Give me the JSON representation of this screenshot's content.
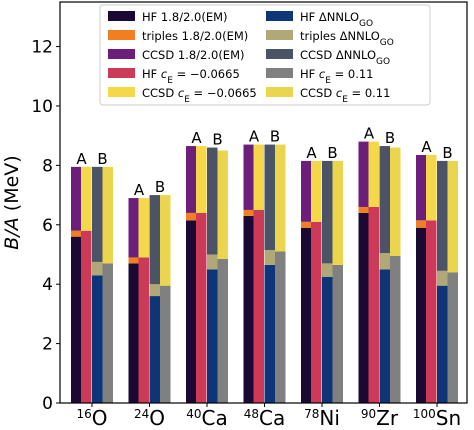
{
  "chart_data": {
    "type": "bar",
    "ylabel": "B/A (MeV)",
    "ylim": [
      0,
      13.5
    ],
    "yticks": [
      0,
      2,
      4,
      6,
      8,
      10,
      12
    ],
    "categories": [
      {
        "mass": "16",
        "element": "O"
      },
      {
        "mass": "24",
        "element": "O"
      },
      {
        "mass": "40",
        "element": "Ca"
      },
      {
        "mass": "48",
        "element": "Ca"
      },
      {
        "mass": "78",
        "element": "Ni"
      },
      {
        "mass": "90",
        "element": "Zr"
      },
      {
        "mass": "100",
        "element": "Sn"
      }
    ],
    "column_labels": [
      "A",
      "B"
    ],
    "colors": {
      "hf_em": "#1a0a33",
      "triples_em": "#f07f22",
      "ccsd_em": "#6b1f7a",
      "hf_ce": "#cc3a57",
      "ccsd_ce": "#f5d84a",
      "hf_go": "#0d3578",
      "triples_go": "#b0a877",
      "ccsd_go": "#4b5366",
      "hf_c011": "#808080",
      "ccsd_c011": "#ecd54e"
    },
    "legend_left": [
      {
        "key": "hf_em",
        "label": "HF 1.8/2.0(EM)"
      },
      {
        "key": "triples_em",
        "label": "triples 1.8/2.0(EM)"
      },
      {
        "key": "ccsd_em",
        "label": "CCSD 1.8/2.0(EM)"
      },
      {
        "key": "hf_ce",
        "label": "HF c_E = −0.0665"
      },
      {
        "key": "ccsd_ce",
        "label": "CCSD c_E = −0.0665"
      }
    ],
    "legend_right": [
      {
        "key": "hf_go",
        "label": "HF ΔNNLO_GO"
      },
      {
        "key": "triples_go",
        "label": "triples ΔNNLO_GO"
      },
      {
        "key": "ccsd_go",
        "label": "CCSD ΔNNLO_GO"
      },
      {
        "key": "hf_c011",
        "label": "HF c_E = 0.11"
      },
      {
        "key": "ccsd_c011",
        "label": "CCSD c_E = 0.11"
      }
    ],
    "series_A": {
      "hf_em": [
        5.6,
        4.7,
        6.15,
        6.3,
        5.9,
        6.4,
        5.9
      ],
      "triples_em": [
        5.8,
        4.9,
        6.4,
        6.5,
        6.1,
        6.6,
        6.15
      ],
      "ccsd_em": [
        7.95,
        6.9,
        8.65,
        8.7,
        8.15,
        8.8,
        8.35
      ],
      "hf_ce": [
        5.8,
        4.9,
        6.4,
        6.5,
        6.1,
        6.6,
        6.15
      ],
      "ccsd_ce": [
        7.95,
        6.9,
        8.65,
        8.7,
        8.15,
        8.8,
        8.35
      ]
    },
    "series_B": {
      "hf_go": [
        4.3,
        3.6,
        4.5,
        4.65,
        4.25,
        4.5,
        3.95
      ],
      "triples_go": [
        4.75,
        4.0,
        5.0,
        5.15,
        4.7,
        5.05,
        4.45
      ],
      "ccsd_go": [
        7.95,
        7.0,
        8.6,
        8.7,
        8.15,
        8.65,
        8.15
      ],
      "hf_c011": [
        4.7,
        3.95,
        4.85,
        5.1,
        4.65,
        4.95,
        4.4
      ],
      "ccsd_c011": [
        7.95,
        7.0,
        8.5,
        8.7,
        8.15,
        8.6,
        8.15
      ]
    }
  }
}
